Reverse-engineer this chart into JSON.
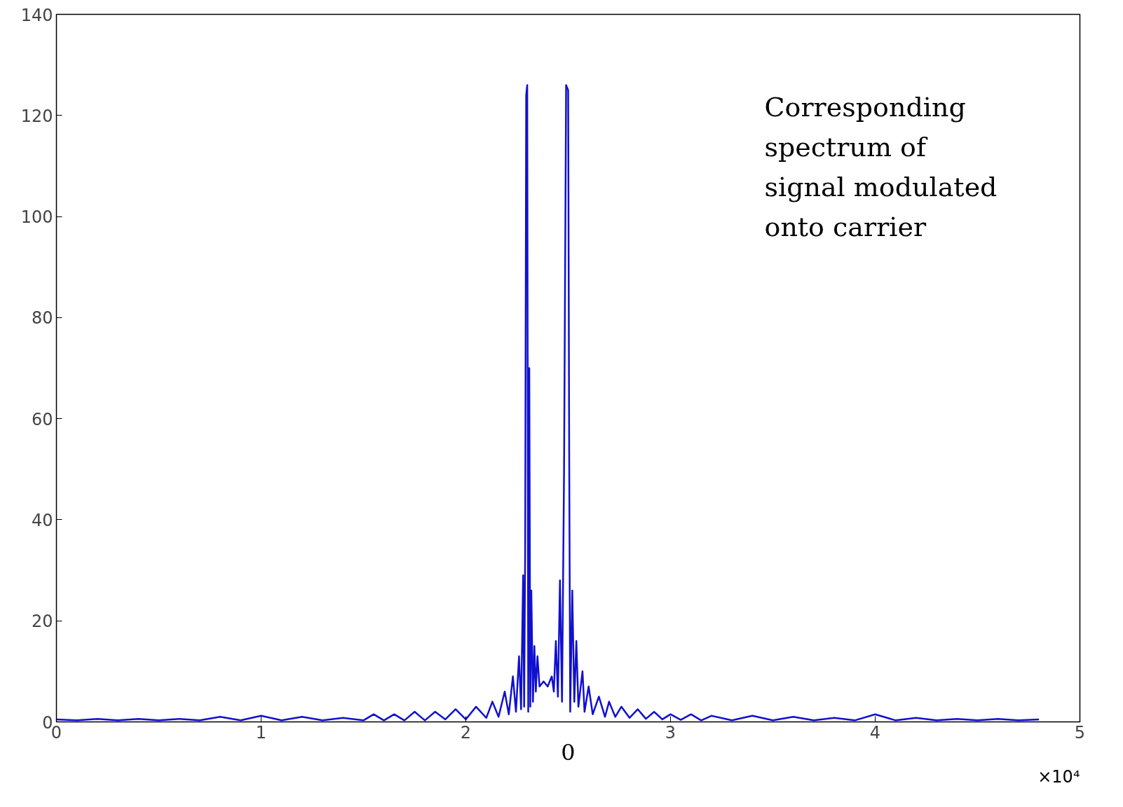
{
  "chart_data": {
    "type": "line",
    "xlabel": "0",
    "annotations": [
      "Corresponding\nspectrum of\nsignal modulated\nonto carrier",
      "×10⁴"
    ],
    "xlim": [
      0,
      5
    ],
    "ylim": [
      0,
      140
    ],
    "xticks": [
      0,
      1,
      2,
      3,
      4,
      5
    ],
    "yticks": [
      0,
      20,
      40,
      60,
      80,
      100,
      120,
      140
    ],
    "grid": false,
    "series": [
      {
        "color": "#1010d0",
        "x": [
          0,
          0.1,
          0.2,
          0.3,
          0.4,
          0.5,
          0.6,
          0.7,
          0.8,
          0.9,
          1.0,
          1.1,
          1.2,
          1.3,
          1.4,
          1.5,
          1.55,
          1.6,
          1.65,
          1.7,
          1.75,
          1.8,
          1.85,
          1.9,
          1.95,
          2.0,
          2.05,
          2.1,
          2.13,
          2.16,
          2.19,
          2.21,
          2.23,
          2.245,
          2.26,
          2.27,
          2.28,
          2.285,
          2.29,
          2.295,
          2.3,
          2.305,
          2.31,
          2.315,
          2.32,
          2.328,
          2.335,
          2.342,
          2.35,
          2.36,
          2.38,
          2.4,
          2.42,
          2.43,
          2.44,
          2.45,
          2.46,
          2.47,
          2.48,
          2.49,
          2.5,
          2.505,
          2.51,
          2.52,
          2.53,
          2.54,
          2.55,
          2.57,
          2.58,
          2.6,
          2.62,
          2.65,
          2.68,
          2.7,
          2.73,
          2.76,
          2.8,
          2.84,
          2.88,
          2.92,
          2.96,
          3.0,
          3.05,
          3.1,
          3.15,
          3.2,
          3.3,
          3.4,
          3.5,
          3.6,
          3.7,
          3.8,
          3.9,
          4.0,
          4.1,
          4.2,
          4.3,
          4.4,
          4.5,
          4.6,
          4.7,
          4.8
        ],
        "values": [
          0.5,
          0.3,
          0.6,
          0.3,
          0.6,
          0.3,
          0.6,
          0.3,
          1,
          0.3,
          1.2,
          0.3,
          1,
          0.3,
          0.8,
          0.3,
          1.5,
          0.3,
          1.5,
          0.3,
          2,
          0.3,
          2,
          0.5,
          2.5,
          0.5,
          3,
          0.8,
          4,
          1,
          6,
          1.5,
          9,
          2,
          13,
          2.5,
          29,
          3,
          34,
          124,
          126,
          2,
          70,
          3,
          26,
          4,
          15,
          6,
          13,
          7,
          8,
          7,
          9,
          6,
          16,
          5,
          28,
          4,
          50,
          126,
          125,
          54,
          2,
          26,
          4,
          16,
          3,
          10,
          2,
          7,
          1.5,
          5,
          1,
          4,
          1,
          3,
          0.8,
          2.5,
          0.6,
          2,
          0.5,
          1.5,
          0.4,
          1.5,
          0.3,
          1.2,
          0.3,
          1.2,
          0.3,
          1,
          0.3,
          0.8,
          0.3,
          1.5,
          0.3,
          0.8,
          0.3,
          0.6,
          0.3,
          0.6,
          0.3,
          0.5
        ]
      }
    ]
  }
}
